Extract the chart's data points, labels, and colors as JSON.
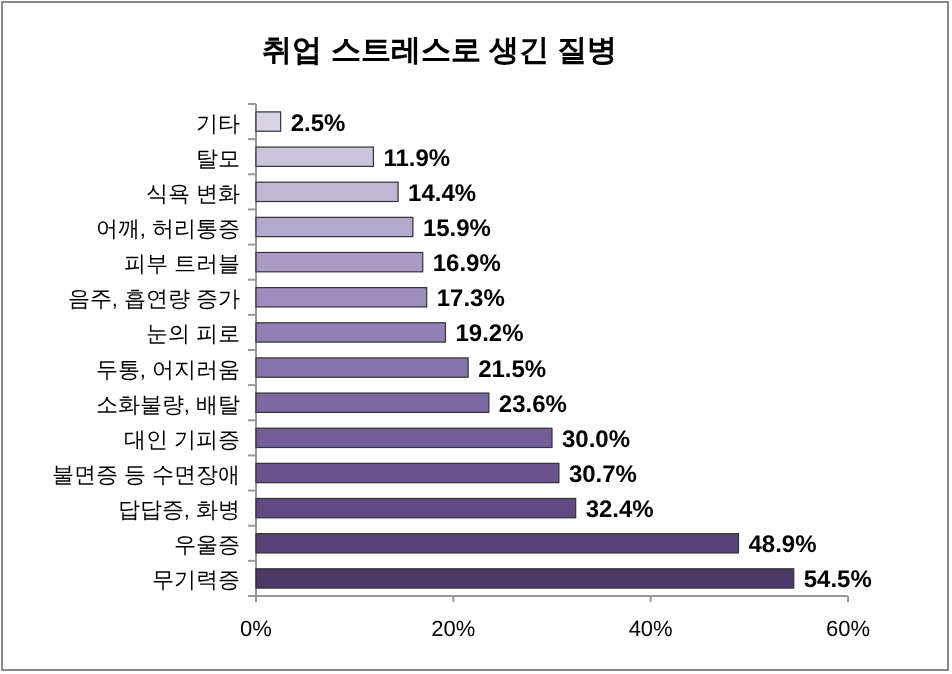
{
  "chart_data": {
    "type": "bar",
    "orientation": "horizontal",
    "title": "취업 스트레스로 생긴 질병",
    "categories": [
      "기타",
      "탈모",
      "식욕 변화",
      "어깨, 허리통증",
      "피부 트러블",
      "음주, 흡연량 증가",
      "눈의 피로",
      "두통, 어지러움",
      "소화불량, 배탈",
      "대인 기피증",
      "불면증 등 수면장애",
      "답답증, 화병",
      "우울증",
      "무기력증"
    ],
    "values": [
      2.5,
      11.9,
      14.4,
      15.9,
      16.9,
      17.3,
      19.2,
      21.5,
      23.6,
      30.0,
      30.7,
      32.4,
      48.9,
      54.5
    ],
    "value_labels": [
      "2.5%",
      "11.9%",
      "14.4%",
      "15.9%",
      "16.9%",
      "17.3%",
      "19.2%",
      "21.5%",
      "23.6%",
      "30.0%",
      "30.7%",
      "32.4%",
      "48.9%",
      "54.5%"
    ],
    "colors": [
      "#d8d4e4",
      "#cbc5dc",
      "#bfb7d4",
      "#b3a9cc",
      "#a89bc4",
      "#9d8ebd",
      "#9281b5",
      "#8874ad",
      "#7e68a4",
      "#745d99",
      "#6b538e",
      "#614a82",
      "#574175",
      "#4d3968"
    ],
    "xlim": [
      0,
      60
    ],
    "xticks": [
      {
        "value": 0,
        "label": "0%"
      },
      {
        "value": 20,
        "label": "20%"
      },
      {
        "value": 40,
        "label": "40%"
      },
      {
        "value": 60,
        "label": "60%"
      }
    ],
    "grid": false
  }
}
